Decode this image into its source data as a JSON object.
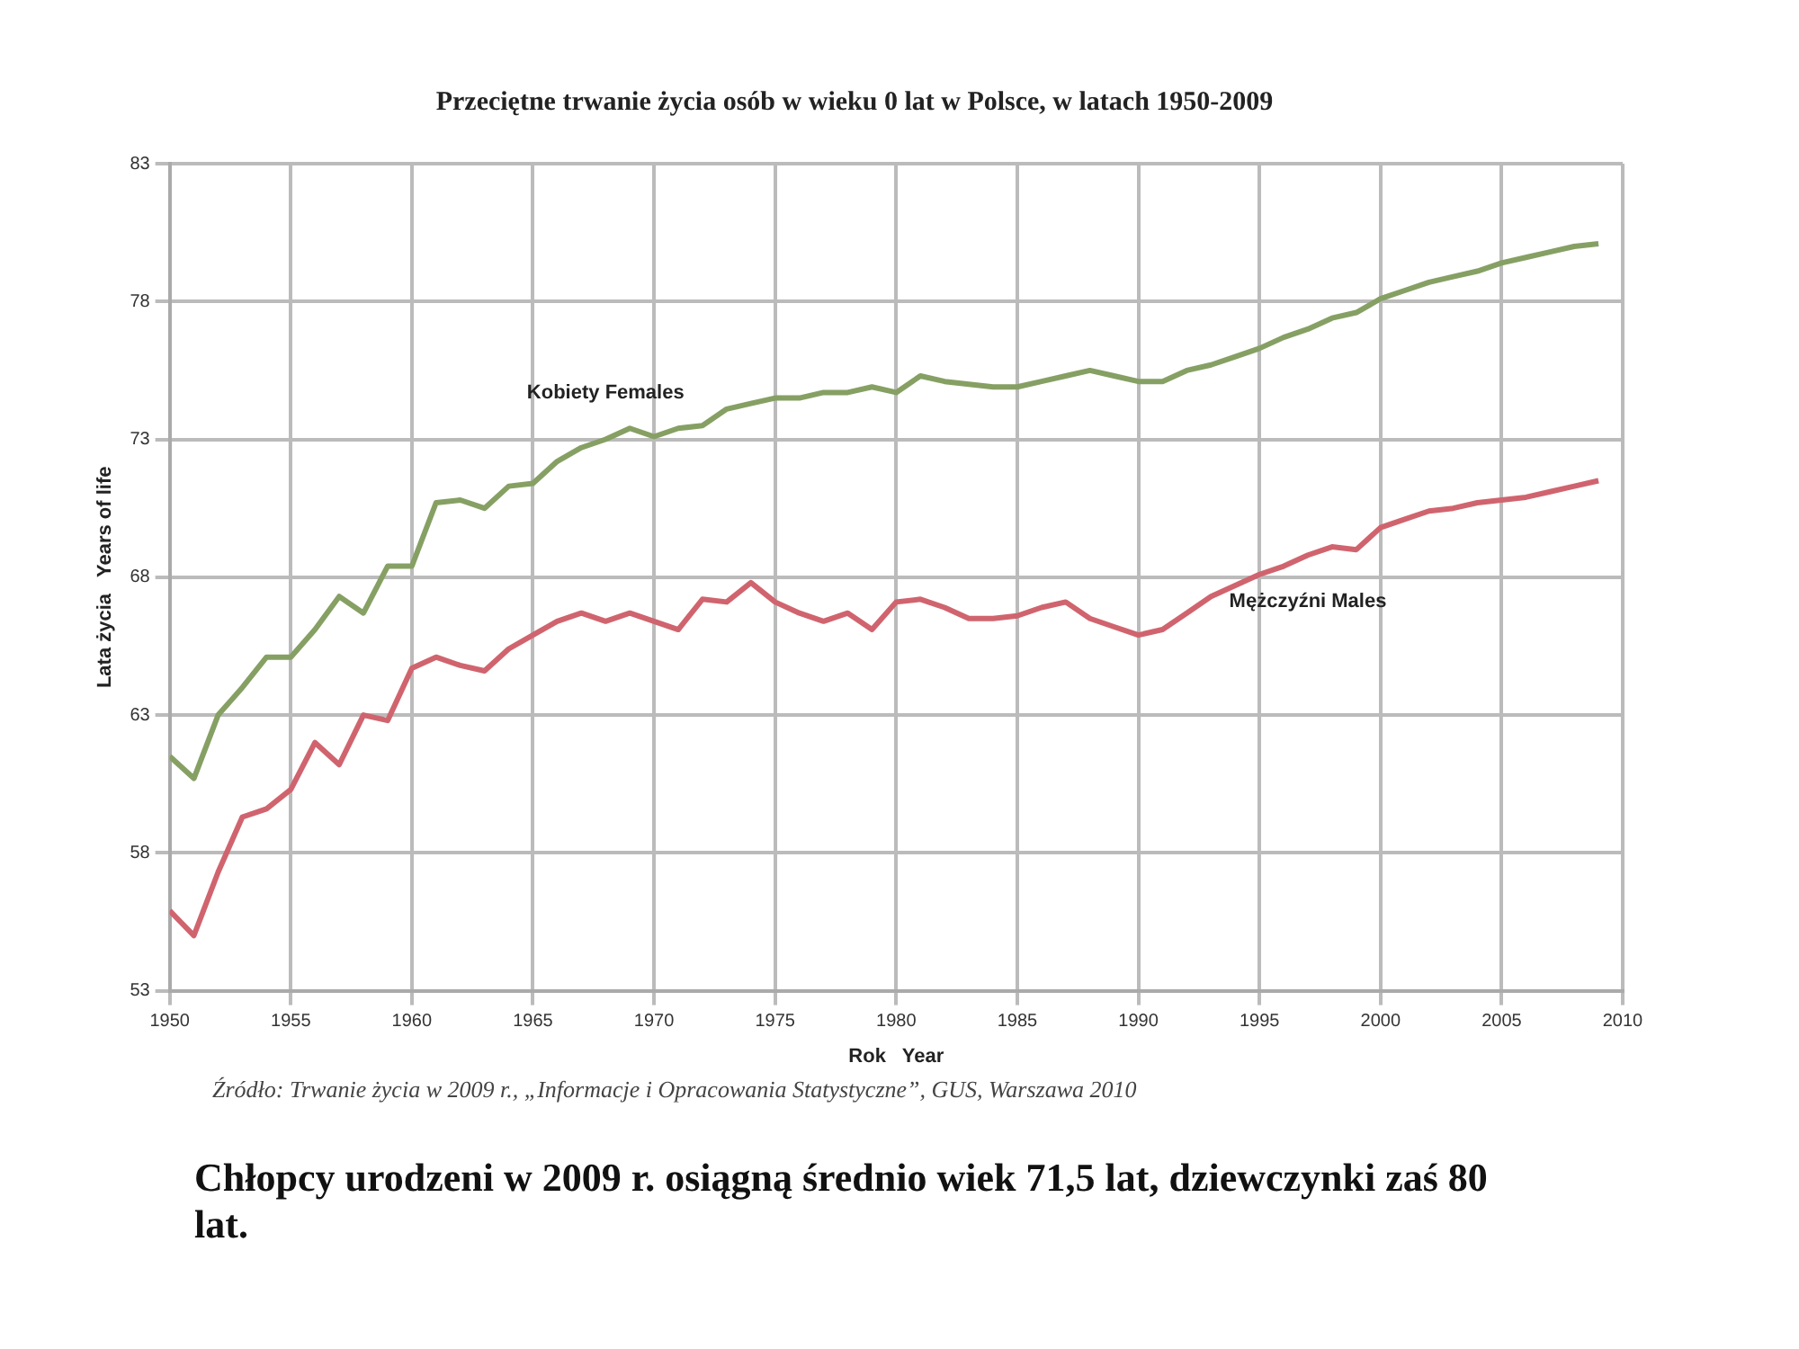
{
  "chart_data": {
    "type": "line",
    "title": "Przeciętne trwanie życia osób w wieku 0 lat w Polsce, w latach 1950-2009",
    "xlabel": "Rok   Year",
    "ylabel": "Lata życia   Years of life",
    "x": [
      1950,
      1951,
      1952,
      1953,
      1954,
      1955,
      1956,
      1957,
      1958,
      1959,
      1960,
      1961,
      1962,
      1963,
      1964,
      1965,
      1966,
      1967,
      1968,
      1969,
      1970,
      1971,
      1972,
      1973,
      1974,
      1975,
      1976,
      1977,
      1978,
      1979,
      1980,
      1981,
      1982,
      1983,
      1984,
      1985,
      1986,
      1987,
      1988,
      1989,
      1990,
      1991,
      1992,
      1993,
      1994,
      1995,
      1996,
      1997,
      1998,
      1999,
      2000,
      2001,
      2002,
      2003,
      2004,
      2005,
      2006,
      2007,
      2008,
      2009
    ],
    "series": [
      {
        "name": "Kobiety Females",
        "color": "#86a064",
        "values": [
          61.5,
          60.7,
          63.0,
          64.0,
          65.1,
          65.1,
          66.1,
          67.3,
          66.7,
          68.4,
          68.4,
          70.7,
          70.8,
          70.5,
          71.3,
          71.4,
          72.2,
          72.7,
          73.0,
          73.4,
          73.1,
          73.4,
          73.5,
          74.1,
          74.3,
          74.5,
          74.5,
          74.7,
          74.7,
          74.9,
          74.7,
          75.3,
          75.1,
          75.0,
          74.9,
          74.9,
          75.1,
          75.3,
          75.5,
          75.3,
          75.1,
          75.1,
          75.5,
          75.7,
          76.0,
          76.3,
          76.7,
          77.0,
          77.4,
          77.6,
          78.1,
          78.4,
          78.7,
          78.9,
          79.1,
          79.4,
          79.6,
          79.8,
          80.0,
          80.1
        ]
      },
      {
        "name": "Mężczyźni Males",
        "color": "#d0646e",
        "values": [
          55.9,
          55.0,
          57.3,
          59.3,
          59.6,
          60.3,
          62.0,
          61.2,
          63.0,
          62.8,
          64.7,
          65.1,
          64.8,
          64.6,
          65.4,
          65.9,
          66.4,
          66.7,
          66.4,
          66.7,
          66.4,
          66.1,
          67.2,
          67.1,
          67.8,
          67.1,
          66.7,
          66.4,
          66.7,
          66.1,
          67.1,
          67.2,
          66.9,
          66.5,
          66.5,
          66.6,
          66.9,
          67.1,
          66.5,
          66.2,
          65.9,
          66.1,
          66.7,
          67.3,
          67.7,
          68.1,
          68.4,
          68.8,
          69.1,
          69.0,
          69.8,
          70.1,
          70.4,
          70.5,
          70.7,
          70.8,
          70.9,
          71.1,
          71.3,
          71.5
        ]
      }
    ],
    "xlim": [
      1950,
      2010
    ],
    "xticks": [
      1950,
      1955,
      1960,
      1965,
      1970,
      1975,
      1980,
      1985,
      1990,
      1995,
      2000,
      2005,
      2010
    ],
    "ylim": [
      53,
      83
    ],
    "yticks": [
      53,
      58,
      63,
      68,
      73,
      78,
      83
    ],
    "grid": true,
    "legend": false,
    "marker": "none",
    "line_style": "solid",
    "annotations": [
      "Źródło: Trwanie życia w 2009 r., „Informacje i Opracowania Statystyczne”, GUS, Warszawa 2010",
      "Chłopcy urodzeni w 2009 r. osiągną średnio wiek 71,5 lat, dziewczynki zaś 80 lat."
    ]
  }
}
